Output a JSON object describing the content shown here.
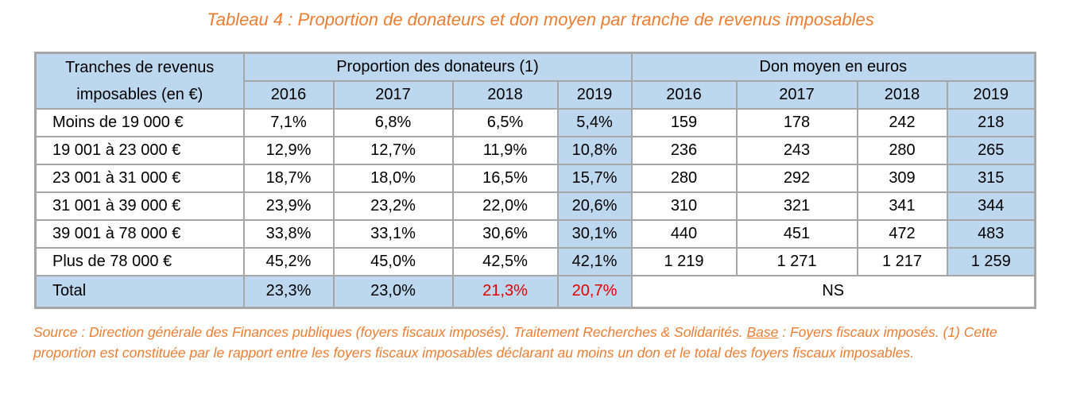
{
  "title": "Tableau 4 : Proportion de donateurs et don moyen par tranche de revenus imposables",
  "header": {
    "row_label_line1": "Tranches de revenus",
    "row_label_line2": "imposables (en €)",
    "group1": "Proportion des donateurs (1)",
    "group2": "Don moyen en euros",
    "years": [
      "2016",
      "2017",
      "2018",
      "2019"
    ]
  },
  "rows": [
    {
      "label": "Moins de 19 000 €",
      "prop": [
        "7,1%",
        "6,8%",
        "6,5%",
        "5,4%"
      ],
      "don": [
        "159",
        "178",
        "242",
        "218"
      ]
    },
    {
      "label": "19 001 à 23 000 €",
      "prop": [
        "12,9%",
        "12,7%",
        "11,9%",
        "10,8%"
      ],
      "don": [
        "236",
        "243",
        "280",
        "265"
      ]
    },
    {
      "label": "23 001 à 31 000 €",
      "prop": [
        "18,7%",
        "18,0%",
        "16,5%",
        "15,7%"
      ],
      "don": [
        "280",
        "292",
        "309",
        "315"
      ]
    },
    {
      "label": "31 001 à 39 000 €",
      "prop": [
        "23,9%",
        "23,2%",
        "22,0%",
        "20,6%"
      ],
      "don": [
        "310",
        "321",
        "341",
        "344"
      ]
    },
    {
      "label": "39 001 à 78 000 €",
      "prop": [
        "33,8%",
        "33,1%",
        "30,6%",
        "30,1%"
      ],
      "don": [
        "440",
        "451",
        "472",
        "483"
      ]
    },
    {
      "label": "Plus de 78 000 €",
      "prop": [
        "45,2%",
        "45,0%",
        "42,5%",
        "42,1%"
      ],
      "don": [
        "1 219",
        "1 271",
        "1 217",
        "1 259"
      ]
    }
  ],
  "total": {
    "label": "Total",
    "prop": [
      "23,3%",
      "23,0%",
      "21,3%",
      "20,7%"
    ],
    "don": "NS"
  },
  "colors": {
    "accent": "#ed7d31",
    "header_fill": "#bdd7ee",
    "highlight_red": "#e00000"
  },
  "source": {
    "part1": "Source : Direction générale des Finances publiques (foyers fiscaux imposés). Traitement Recherches & Solidarités. ",
    "base_label": "Base",
    "part2": " : Foyers fiscaux imposés. (1) Cette proportion est constituée par le rapport entre les foyers fiscaux imposables déclarant au moins un don et le total des foyers fiscaux imposables."
  }
}
